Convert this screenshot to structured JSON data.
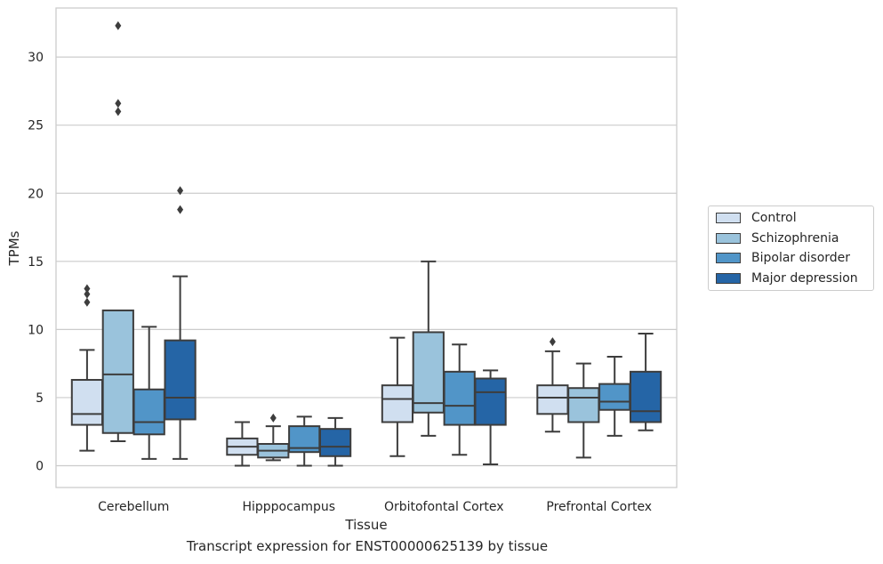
{
  "caption": "Transcript expression for ENST00000625139 by tissue",
  "chart_data": {
    "type": "boxplot",
    "xlabel": "Tissue",
    "ylabel": "TPMs",
    "ylim": [
      -1.6,
      33.6
    ],
    "yticks": [
      0,
      5,
      10,
      15,
      20,
      25,
      30
    ],
    "grid": "horizontal",
    "legend_position": "right",
    "categories": [
      "Cerebellum",
      "Hipppocampus",
      "Orbitofontal Cortex",
      "Prefrontal Cortex"
    ],
    "series": [
      {
        "name": "Control",
        "color": "#d0dff0",
        "boxes": [
          {
            "whislo": 1.1,
            "q1": 3.0,
            "med": 3.8,
            "q3": 6.3,
            "whishi": 8.5,
            "fliers": [
              12.0,
              12.6,
              13.0
            ]
          },
          {
            "whislo": 0.0,
            "q1": 0.8,
            "med": 1.4,
            "q3": 2.0,
            "whishi": 3.2,
            "fliers": []
          },
          {
            "whislo": 0.7,
            "q1": 3.2,
            "med": 4.9,
            "q3": 5.9,
            "whishi": 9.4,
            "fliers": []
          },
          {
            "whislo": 2.5,
            "q1": 3.8,
            "med": 5.0,
            "q3": 5.9,
            "whishi": 8.4,
            "fliers": [
              9.1
            ]
          }
        ]
      },
      {
        "name": "Schizophrenia",
        "color": "#9ac3dc",
        "boxes": [
          {
            "whislo": 1.8,
            "q1": 2.4,
            "med": 6.7,
            "q3": 11.4,
            "whishi": 11.4,
            "fliers": [
              26.0,
              26.6,
              32.3
            ]
          },
          {
            "whislo": 0.4,
            "q1": 0.6,
            "med": 1.1,
            "q3": 1.6,
            "whishi": 2.9,
            "fliers": [
              3.5
            ]
          },
          {
            "whislo": 2.2,
            "q1": 3.9,
            "med": 4.6,
            "q3": 9.8,
            "whishi": 15.0,
            "fliers": []
          },
          {
            "whislo": 0.6,
            "q1": 3.2,
            "med": 5.0,
            "q3": 5.7,
            "whishi": 7.5,
            "fliers": []
          }
        ]
      },
      {
        "name": "Bipolar disorder",
        "color": "#5195c8",
        "boxes": [
          {
            "whislo": 0.5,
            "q1": 2.3,
            "med": 3.2,
            "q3": 5.6,
            "whishi": 10.2,
            "fliers": []
          },
          {
            "whislo": 0.0,
            "q1": 1.0,
            "med": 1.3,
            "q3": 2.9,
            "whishi": 3.6,
            "fliers": []
          },
          {
            "whislo": 0.8,
            "q1": 3.0,
            "med": 4.4,
            "q3": 6.9,
            "whishi": 8.9,
            "fliers": []
          },
          {
            "whislo": 2.2,
            "q1": 4.1,
            "med": 4.7,
            "q3": 6.0,
            "whishi": 8.0,
            "fliers": []
          }
        ]
      },
      {
        "name": "Major depression",
        "color": "#2565a6",
        "boxes": [
          {
            "whislo": 0.5,
            "q1": 3.4,
            "med": 5.0,
            "q3": 9.2,
            "whishi": 13.9,
            "fliers": [
              18.8,
              20.2
            ]
          },
          {
            "whislo": 0.0,
            "q1": 0.7,
            "med": 1.4,
            "q3": 2.7,
            "whishi": 3.5,
            "fliers": []
          },
          {
            "whislo": 0.1,
            "q1": 3.0,
            "med": 5.4,
            "q3": 6.4,
            "whishi": 7.0,
            "fliers": []
          },
          {
            "whislo": 2.6,
            "q1": 3.2,
            "med": 4.0,
            "q3": 6.9,
            "whishi": 9.7,
            "fliers": []
          }
        ]
      }
    ]
  }
}
